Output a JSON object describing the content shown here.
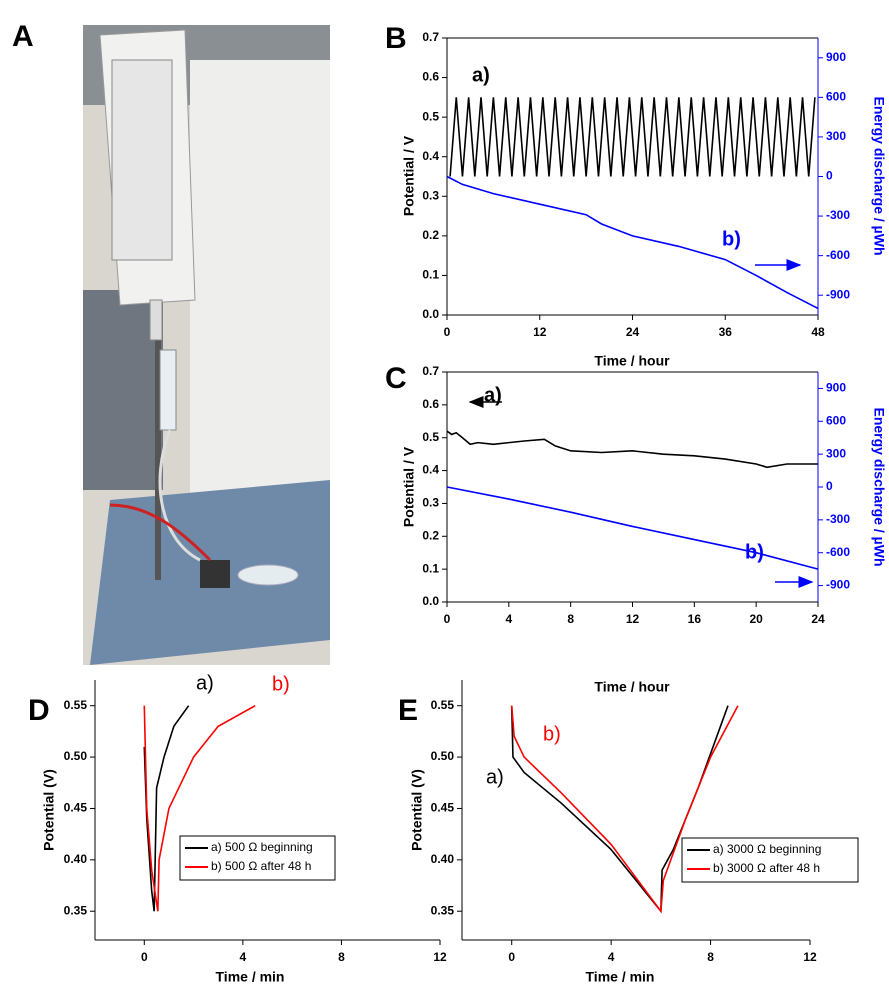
{
  "photo": {
    "panel": "A"
  },
  "chart_data": [
    {
      "type": "line",
      "panel": "B",
      "xlabel": "Time / hour",
      "ylabel": "Potential / V",
      "y2label": "Energy discharge / µWh",
      "xlim": [
        0,
        48
      ],
      "xticks": [
        0,
        12,
        24,
        36,
        48
      ],
      "ylim": [
        0,
        0.7
      ],
      "yticks": [
        {
          "value": 0,
          "label": "0.0"
        },
        0.1,
        0.2,
        0.3,
        0.4,
        0.5,
        0.6,
        0.7
      ],
      "y2lim": [
        -1050,
        1050
      ],
      "y2ticks": [
        -900,
        -600,
        -300,
        0,
        300,
        600,
        900
      ],
      "series": [
        {
          "label": "a)",
          "color": "#000000",
          "x": [
            0.4,
            1.2,
            2,
            2.8,
            3.6,
            4.4,
            5.2,
            6,
            6.8,
            7.6,
            8.4,
            9.2,
            10,
            10.8,
            11.6,
            12.4,
            13.2,
            14,
            14.8,
            15.6,
            16.4,
            17.2,
            18,
            18.8,
            19.6,
            20.4,
            21.2,
            22,
            22.8,
            23.6,
            24.4,
            25.2,
            26,
            26.8,
            27.6,
            28.4,
            29.2,
            30,
            30.8,
            31.6,
            32.4,
            33.2,
            34,
            34.8,
            35.6,
            36.4,
            37.2,
            38,
            38.8,
            39.6,
            40.4,
            41.2,
            42,
            42.8,
            43.6,
            44.4,
            45.2,
            46,
            46.8,
            47.6
          ],
          "values": [
            0.35,
            0.55,
            0.35,
            0.55,
            0.35,
            0.55,
            0.35,
            0.55,
            0.35,
            0.55,
            0.35,
            0.55,
            0.35,
            0.55,
            0.35,
            0.55,
            0.35,
            0.55,
            0.35,
            0.55,
            0.35,
            0.55,
            0.35,
            0.55,
            0.35,
            0.55,
            0.35,
            0.55,
            0.35,
            0.55,
            0.35,
            0.55,
            0.35,
            0.55,
            0.35,
            0.55,
            0.35,
            0.55,
            0.35,
            0.55,
            0.35,
            0.55,
            0.35,
            0.55,
            0.35,
            0.55,
            0.35,
            0.55,
            0.35,
            0.55,
            0.35,
            0.55,
            0.35,
            0.55,
            0.35,
            0.55,
            0.35,
            0.55,
            0.35,
            0.55
          ]
        },
        {
          "label": "b)",
          "color": "#0000ff",
          "axis": "y2",
          "x": [
            0,
            2,
            6,
            12,
            18,
            20,
            24,
            30,
            36,
            40,
            44,
            48
          ],
          "values": [
            0,
            -60,
            -130,
            -210,
            -290,
            -360,
            -450,
            -530,
            -630,
            -750,
            -880,
            -1000
          ]
        }
      ]
    },
    {
      "type": "line",
      "panel": "C",
      "xlabel": "Time / hour",
      "ylabel": "Potential / V",
      "y2label": "Energy discharge / µWh",
      "xlim": [
        0,
        24
      ],
      "xticks": [
        0,
        4,
        8,
        12,
        16,
        20,
        24
      ],
      "ylim": [
        0,
        0.7
      ],
      "yticks": [
        {
          "value": 0,
          "label": "0.0"
        },
        0.1,
        0.2,
        0.3,
        0.4,
        0.5,
        0.6,
        0.7
      ],
      "y2lim": [
        -1050,
        1050
      ],
      "y2ticks": [
        -900,
        -600,
        -300,
        0,
        300,
        600,
        900
      ],
      "series": [
        {
          "label": "a)",
          "color": "#000000",
          "x": [
            0,
            0.3,
            0.6,
            1,
            1.5,
            2,
            3,
            4,
            5,
            6.3,
            7,
            8,
            10,
            12,
            14,
            16,
            18,
            20,
            20.7,
            22,
            24
          ],
          "values": [
            0.52,
            0.51,
            0.515,
            0.5,
            0.48,
            0.485,
            0.48,
            0.485,
            0.49,
            0.495,
            0.475,
            0.46,
            0.455,
            0.46,
            0.45,
            0.445,
            0.435,
            0.42,
            0.41,
            0.42,
            0.42
          ]
        },
        {
          "label": "b)",
          "color": "#0000ff",
          "axis": "y2",
          "x": [
            0,
            4,
            8,
            12,
            16,
            20,
            24
          ],
          "values": [
            0,
            -110,
            -230,
            -360,
            -480,
            -600,
            -750
          ]
        }
      ]
    },
    {
      "type": "line",
      "panel": "D",
      "xlabel": "Time / min",
      "ylabel": "Potential (V)",
      "xlim": [
        -2,
        12
      ],
      "xticks": [
        0,
        4,
        8,
        12
      ],
      "ylim": [
        0.322,
        0.575
      ],
      "yticks": [
        0.35,
        {
          "value": 0.4,
          "label": "0.40"
        },
        0.45,
        {
          "value": 0.5,
          "label": "0.50"
        },
        0.55
      ],
      "legend": "lower center",
      "series": [
        {
          "name": "a) 500 Ω beginning",
          "label": "a)",
          "color": "#000000",
          "x": [
            0,
            0.1,
            0.3,
            0.4,
            0.5,
            0.8,
            1.2,
            1.8
          ],
          "values": [
            0.51,
            0.44,
            0.37,
            0.35,
            0.47,
            0.5,
            0.53,
            0.55
          ]
        },
        {
          "name": "b) 500 Ω after 48 h",
          "label": "b)",
          "color": "#ff0000",
          "x": [
            0,
            0.1,
            0.3,
            0.55,
            0.6,
            1,
            2,
            3,
            4.5
          ],
          "values": [
            0.55,
            0.45,
            0.39,
            0.35,
            0.4,
            0.45,
            0.5,
            0.53,
            0.55
          ]
        }
      ]
    },
    {
      "type": "line",
      "panel": "E",
      "xlabel": "Time / min",
      "ylabel": "Potential (V)",
      "xlim": [
        -2,
        12
      ],
      "xticks": [
        0,
        4,
        8,
        12
      ],
      "ylim": [
        0.322,
        0.575
      ],
      "yticks": [
        0.35,
        {
          "value": 0.4,
          "label": "0.40"
        },
        0.45,
        {
          "value": 0.5,
          "label": "0.50"
        },
        0.55
      ],
      "legend": "lower right",
      "series": [
        {
          "name": "a) 3000 Ω beginning",
          "label": "a)",
          "color": "#000000",
          "x": [
            0,
            0.05,
            0.5,
            2,
            4,
            6,
            6.05,
            6.5,
            7.5,
            8.7
          ],
          "values": [
            0.55,
            0.5,
            0.485,
            0.455,
            0.41,
            0.35,
            0.39,
            0.41,
            0.47,
            0.55
          ]
        },
        {
          "name": "b) 3000 Ω after 48 h",
          "label": "b)",
          "color": "#ff0000",
          "x": [
            0,
            0.1,
            0.5,
            2,
            4,
            6,
            6.1,
            7,
            8,
            9.1
          ],
          "values": [
            0.55,
            0.52,
            0.5,
            0.465,
            0.415,
            0.35,
            0.38,
            0.44,
            0.5,
            0.55
          ]
        }
      ]
    }
  ]
}
